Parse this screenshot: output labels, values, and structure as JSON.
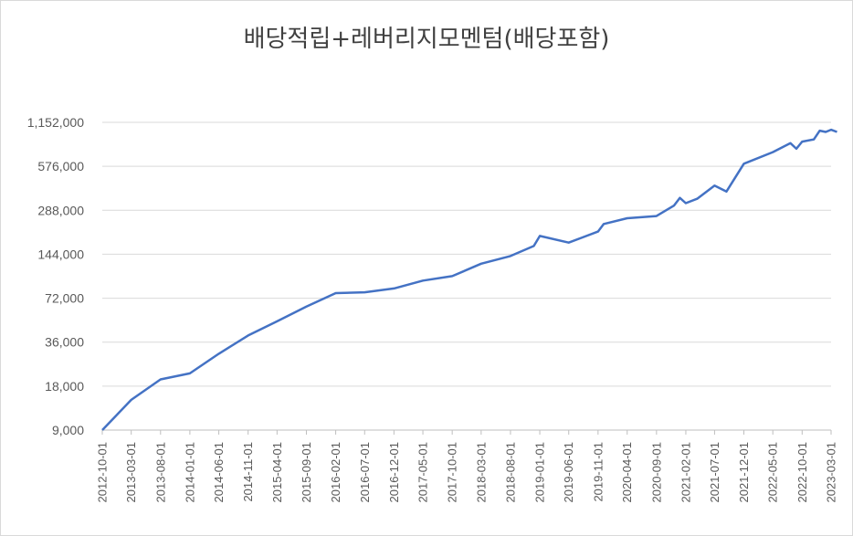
{
  "chart_data": {
    "type": "line",
    "title": "배당적립+레버리지모멘텀(배당포함)",
    "y_scale": "log2",
    "ylim": [
      9000,
      1152000
    ],
    "y_ticks": [
      "9,000",
      "18,000",
      "36,000",
      "72,000",
      "144,000",
      "288,000",
      "576,000",
      "1,152,000"
    ],
    "y_tick_values": [
      9000,
      18000,
      36000,
      72000,
      144000,
      288000,
      576000,
      1152000
    ],
    "x_ticks": [
      "2012-10-01",
      "2013-03-01",
      "2013-08-01",
      "2014-01-01",
      "2014-06-01",
      "2014-11-01",
      "2015-04-01",
      "2015-09-01",
      "2016-02-01",
      "2016-07-01",
      "2016-12-01",
      "2017-05-01",
      "2017-10-01",
      "2018-03-01",
      "2018-08-01",
      "2019-01-01",
      "2019-06-01",
      "2019-11-01",
      "2020-04-01",
      "2020-09-01",
      "2021-02-01",
      "2021-07-01",
      "2021-12-01",
      "2022-05-01",
      "2022-10-01",
      "2023-03-01"
    ],
    "grid": true,
    "legend": "none",
    "color": "#4472c4",
    "series": [
      {
        "x": [
          "2012-10-01",
          "2013-03-01",
          "2013-08-01",
          "2014-01-01",
          "2014-06-01",
          "2014-11-01",
          "2015-04-01",
          "2015-09-01",
          "2016-02-01",
          "2016-07-01",
          "2016-12-01",
          "2017-05-01",
          "2017-10-01",
          "2018-03-01",
          "2018-08-01",
          "2018-12-01",
          "2019-01-01",
          "2019-06-01",
          "2019-11-01",
          "2019-12-01",
          "2020-04-01",
          "2020-09-01",
          "2020-12-01",
          "2021-01-01",
          "2021-02-01",
          "2021-04-01",
          "2021-07-01",
          "2021-09-01",
          "2021-12-01",
          "2022-05-01",
          "2022-08-01",
          "2022-09-01",
          "2022-10-01",
          "2022-12-01",
          "2023-01-01",
          "2023-02-01",
          "2023-03-01",
          "2023-04-01"
        ],
        "values": [
          9000,
          14500,
          20000,
          22000,
          30000,
          40000,
          50000,
          63000,
          78000,
          79000,
          84000,
          95000,
          102000,
          124000,
          140000,
          164000,
          192000,
          173000,
          206000,
          232000,
          254000,
          263000,
          310000,
          350000,
          322000,
          345000,
          425000,
          387000,
          600000,
          720000,
          830000,
          760000,
          850000,
          880000,
          1010000,
          990000,
          1025000,
          990000
        ]
      }
    ]
  }
}
